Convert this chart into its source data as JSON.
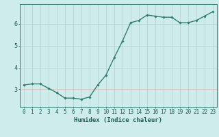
{
  "x": [
    0,
    1,
    2,
    3,
    4,
    5,
    6,
    7,
    8,
    9,
    10,
    11,
    12,
    13,
    14,
    15,
    16,
    17,
    18,
    19,
    20,
    21,
    22,
    23
  ],
  "y": [
    3.2,
    3.25,
    3.25,
    3.05,
    2.85,
    2.6,
    2.6,
    2.55,
    2.65,
    3.2,
    3.65,
    4.45,
    5.2,
    6.05,
    6.15,
    6.4,
    6.35,
    6.3,
    6.3,
    6.05,
    6.05,
    6.15,
    6.35,
    6.55
  ],
  "line_color": "#2e7d6e",
  "marker": "D",
  "marker_size": 1.8,
  "line_width": 1.0,
  "xlabel": "Humidex (Indice chaleur)",
  "xlabel_fontsize": 6.5,
  "xlabel_color": "#1e5f52",
  "xlim": [
    -0.5,
    23.5
  ],
  "ylim": [
    2.2,
    6.9
  ],
  "yticks": [
    3,
    4,
    5,
    6
  ],
  "xtick_labels": [
    "0",
    "1",
    "2",
    "3",
    "4",
    "5",
    "6",
    "7",
    "8",
    "9",
    "10",
    "11",
    "12",
    "13",
    "14",
    "15",
    "16",
    "17",
    "18",
    "19",
    "20",
    "21",
    "22",
    "23"
  ],
  "background_color": "#ceecea",
  "grid_color": "#e8b8b8",
  "axis_color": "#2e7d6e",
  "tick_fontsize": 5.5,
  "tick_color": "#1e5f52"
}
